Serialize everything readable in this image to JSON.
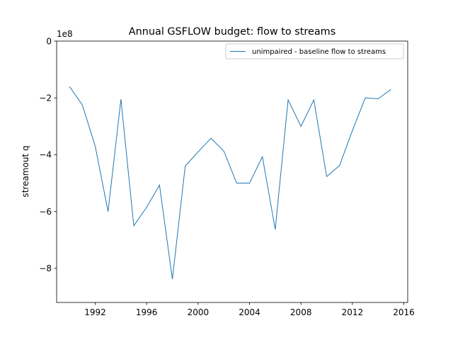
{
  "chart_data": {
    "type": "line",
    "title": "Annual GSFLOW budget: flow to streams",
    "xlabel": "",
    "ylabel": "streamout q",
    "y_offset_label": "1e8",
    "xlim": [
      1989,
      2016.3
    ],
    "ylim": [
      -9.2,
      0
    ],
    "y_scale_factor": 100000000,
    "xticks": [
      1992,
      1996,
      2000,
      2004,
      2008,
      2012,
      2016
    ],
    "yticks": [
      0,
      -2,
      -4,
      -6,
      -8
    ],
    "ytick_labels": [
      "0",
      "−2",
      "−4",
      "−6",
      "−8"
    ],
    "grid": false,
    "legend_position": "top-right",
    "series": [
      {
        "name": "unimpaired - baseline flow to streams",
        "color": "#1f77b4",
        "x": [
          1990,
          1991,
          1992,
          1993,
          1994,
          1995,
          1996,
          1997,
          1998,
          1999,
          2000,
          2001,
          2002,
          2003,
          2004,
          2005,
          2006,
          2007,
          2008,
          2009,
          2010,
          2011,
          2012,
          2013,
          2014,
          2015
        ],
        "y": [
          -1.6,
          -2.25,
          -3.7,
          -6.0,
          -2.05,
          -6.5,
          -5.85,
          -5.07,
          -8.38,
          -4.4,
          -3.9,
          -3.42,
          -3.87,
          -5.0,
          -5.0,
          -4.07,
          -6.63,
          -2.07,
          -3.0,
          -2.07,
          -4.77,
          -4.38,
          -3.15,
          -2.0,
          -2.03,
          -1.7
        ]
      }
    ]
  }
}
